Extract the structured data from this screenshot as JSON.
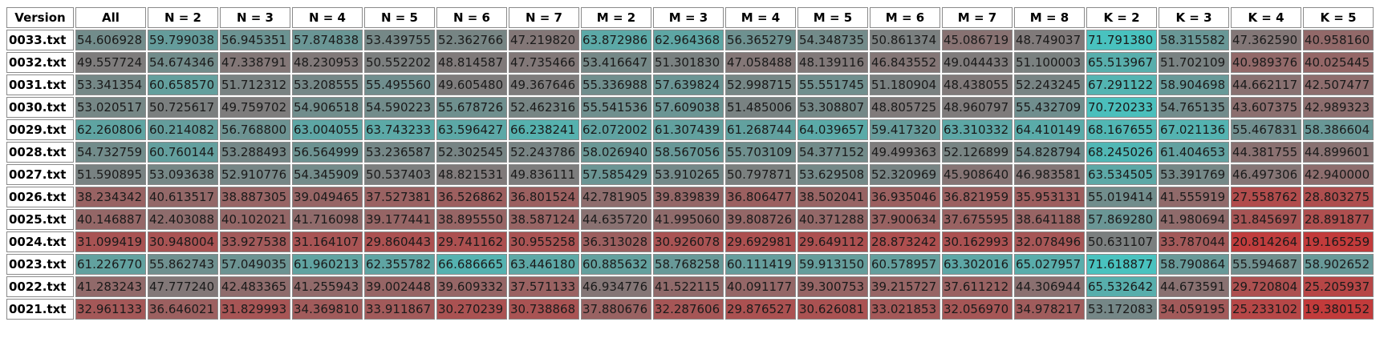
{
  "chart_data": {
    "type": "heatmap",
    "corner_label": "Version",
    "columns": [
      "All",
      "N = 2",
      "N = 3",
      "N = 4",
      "N = 5",
      "N = 6",
      "N = 7",
      "M = 2",
      "M = 3",
      "M = 4",
      "M = 5",
      "M = 6",
      "M = 7",
      "M = 8",
      "K = 2",
      "K = 3",
      "K = 4",
      "K = 5"
    ],
    "rows": [
      {
        "label": "0033.txt",
        "values": [
          "54.606928",
          "59.799038",
          "56.945351",
          "57.874838",
          "53.439755",
          "52.362766",
          "47.219820",
          "63.872986",
          "62.964368",
          "56.365279",
          "54.348735",
          "50.861374",
          "45.086719",
          "48.749037",
          "71.791380",
          "58.315582",
          "47.362590",
          "40.958160"
        ]
      },
      {
        "label": "0032.txt",
        "values": [
          "49.557724",
          "54.674346",
          "47.338791",
          "48.230953",
          "50.552202",
          "48.814587",
          "47.735466",
          "53.416647",
          "51.301830",
          "47.058488",
          "48.139116",
          "46.843552",
          "49.044433",
          "51.100003",
          "65.513967",
          "51.702109",
          "40.989376",
          "40.025445"
        ]
      },
      {
        "label": "0031.txt",
        "values": [
          "53.341354",
          "60.658570",
          "51.712312",
          "53.208555",
          "55.495560",
          "49.605480",
          "49.367646",
          "55.336988",
          "57.639824",
          "52.998715",
          "55.551745",
          "51.180904",
          "48.438055",
          "52.243245",
          "67.291122",
          "58.904698",
          "44.662117",
          "42.507477"
        ]
      },
      {
        "label": "0030.txt",
        "values": [
          "53.020517",
          "50.725617",
          "49.759702",
          "54.906518",
          "54.590223",
          "55.678726",
          "52.462316",
          "55.541536",
          "57.609038",
          "51.485006",
          "53.308807",
          "48.805725",
          "48.960797",
          "55.432709",
          "70.720233",
          "54.765135",
          "43.607375",
          "42.989323"
        ]
      },
      {
        "label": "0029.txt",
        "values": [
          "62.260806",
          "60.214082",
          "56.768800",
          "63.004055",
          "63.743233",
          "63.596427",
          "66.238241",
          "62.072002",
          "61.307439",
          "61.268744",
          "64.039657",
          "59.417320",
          "63.310332",
          "64.410149",
          "68.167655",
          "67.021136",
          "55.467831",
          "58.386604"
        ]
      },
      {
        "label": "0028.txt",
        "values": [
          "54.732759",
          "60.760144",
          "53.288493",
          "56.564999",
          "53.236587",
          "52.302545",
          "52.243786",
          "58.026940",
          "58.567056",
          "55.703109",
          "54.377152",
          "49.499363",
          "52.126899",
          "54.828794",
          "68.245026",
          "61.404653",
          "44.381755",
          "44.899601"
        ]
      },
      {
        "label": "0027.txt",
        "values": [
          "51.590895",
          "53.093638",
          "52.910776",
          "54.345909",
          "50.537403",
          "48.821531",
          "49.836111",
          "57.585429",
          "53.910265",
          "50.797871",
          "53.629508",
          "52.320969",
          "45.908640",
          "46.983581",
          "63.534505",
          "53.391769",
          "46.497306",
          "42.940000"
        ]
      },
      {
        "label": "0026.txt",
        "values": [
          "38.234342",
          "40.613517",
          "38.887305",
          "39.049465",
          "37.527381",
          "36.526862",
          "36.801524",
          "42.781905",
          "39.839839",
          "36.806477",
          "38.502041",
          "36.935046",
          "36.821959",
          "35.953131",
          "55.019414",
          "41.555919",
          "27.558762",
          "28.803275"
        ]
      },
      {
        "label": "0025.txt",
        "values": [
          "40.146887",
          "42.403088",
          "40.102021",
          "41.716098",
          "39.177441",
          "38.895550",
          "38.587124",
          "44.635720",
          "41.995060",
          "39.808726",
          "40.371288",
          "37.900634",
          "37.675595",
          "38.641188",
          "57.869280",
          "41.980694",
          "31.845697",
          "28.891877"
        ]
      },
      {
        "label": "0024.txt",
        "values": [
          "31.099419",
          "30.948004",
          "33.927538",
          "31.164107",
          "29.860443",
          "29.741162",
          "30.955258",
          "36.313028",
          "30.926078",
          "29.692981",
          "29.649112",
          "28.873242",
          "30.162993",
          "32.078496",
          "50.631107",
          "33.787044",
          "20.814264",
          "19.165259"
        ]
      },
      {
        "label": "0023.txt",
        "values": [
          "61.226770",
          "55.862743",
          "57.049035",
          "61.960213",
          "62.355782",
          "66.686665",
          "63.446180",
          "60.885632",
          "58.768258",
          "60.111419",
          "59.913150",
          "60.578957",
          "63.302016",
          "65.027957",
          "71.618877",
          "58.790864",
          "55.594687",
          "58.902652"
        ]
      },
      {
        "label": "0022.txt",
        "values": [
          "41.283243",
          "47.777240",
          "42.483365",
          "41.255943",
          "39.002448",
          "39.609332",
          "37.571133",
          "46.934776",
          "41.522115",
          "40.091177",
          "39.300753",
          "39.215727",
          "37.611212",
          "44.306944",
          "65.532642",
          "44.673591",
          "29.720804",
          "25.205937"
        ]
      },
      {
        "label": "0021.txt",
        "values": [
          "32.961133",
          "36.646021",
          "31.829993",
          "34.369810",
          "33.911867",
          "30.270239",
          "30.738868",
          "37.880676",
          "32.287606",
          "29.876527",
          "30.626081",
          "33.021853",
          "32.056970",
          "34.978217",
          "53.172083",
          "34.059195",
          "25.233102",
          "19.380152"
        ]
      }
    ],
    "colors": {
      "low": "#c23b3b",
      "mid": "#7d7d7d",
      "high": "#48c3c0"
    }
  }
}
